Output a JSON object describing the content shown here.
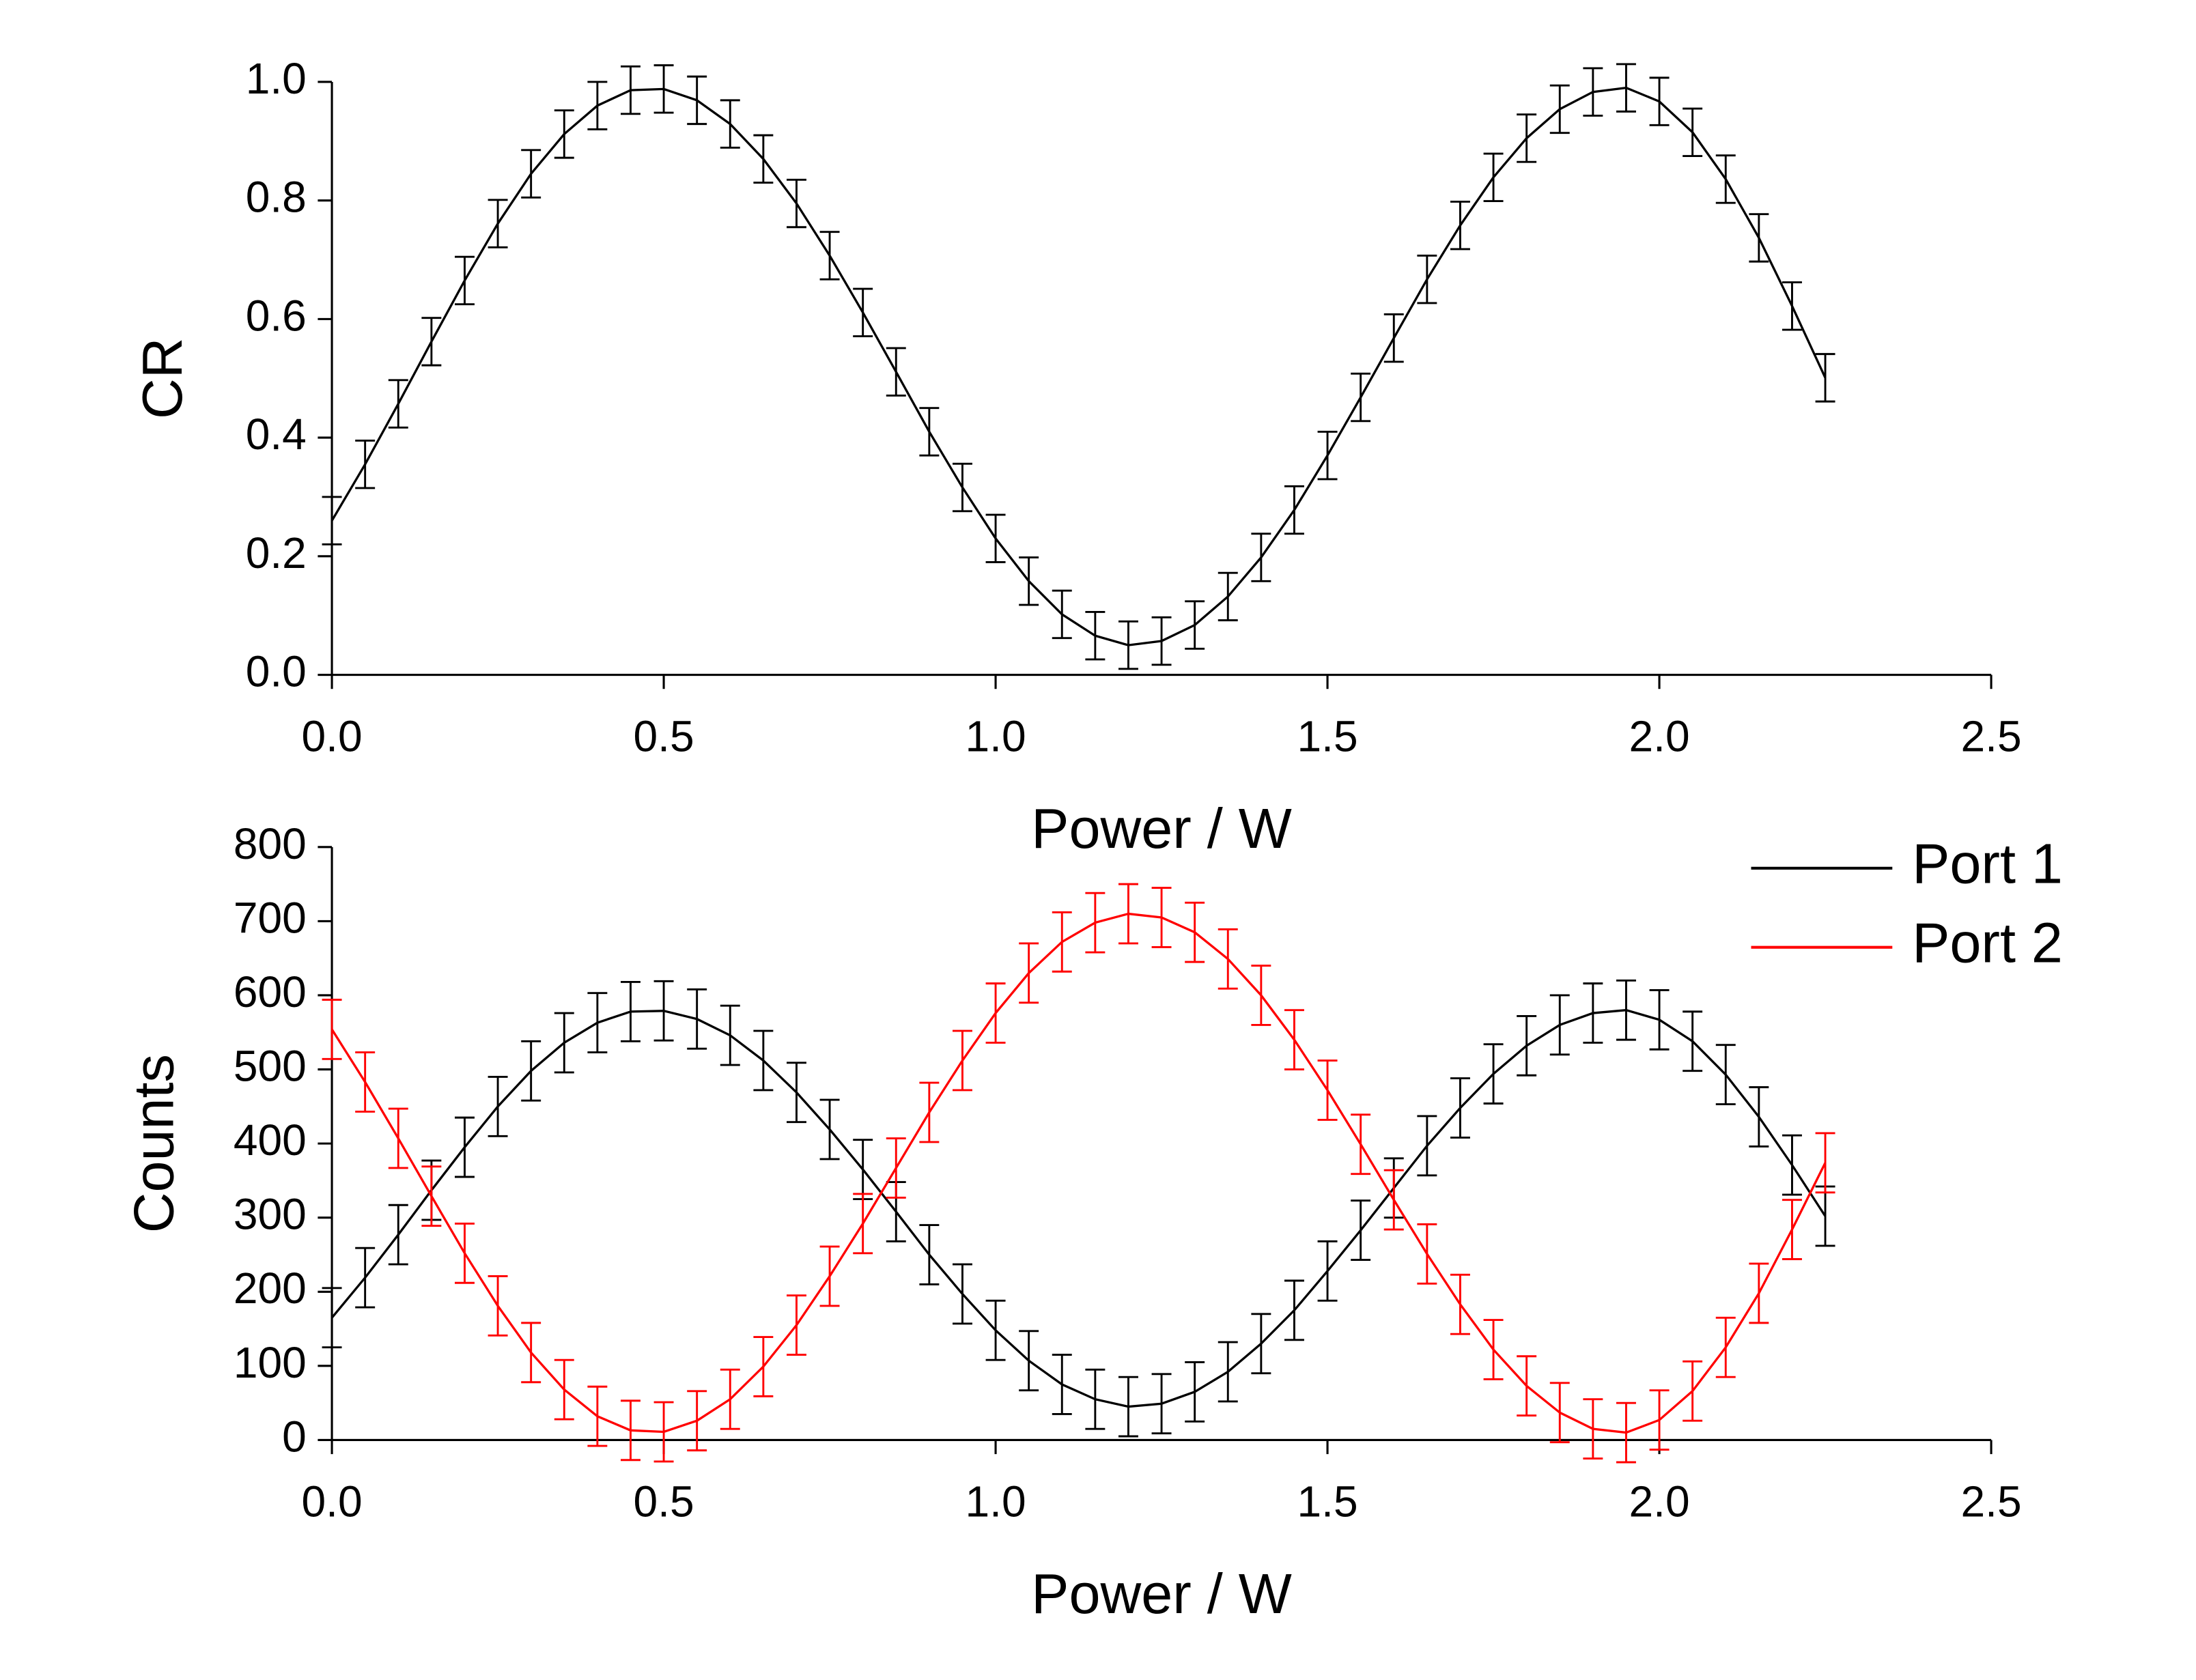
{
  "chart_data": [
    {
      "type": "line",
      "x": [
        0,
        0.05,
        0.1,
        0.15,
        0.2,
        0.25,
        0.3,
        0.35,
        0.4,
        0.45,
        0.5,
        0.55,
        0.6,
        0.65,
        0.7,
        0.75,
        0.8,
        0.85,
        0.9,
        0.95,
        1.0,
        1.05,
        1.1,
        1.15,
        1.2,
        1.25,
        1.3,
        1.35,
        1.4,
        1.45,
        1.5,
        1.55,
        1.6,
        1.65,
        1.7,
        1.75,
        1.8,
        1.85,
        1.9,
        1.95,
        2.0,
        2.05,
        2.1,
        2.15,
        2.2,
        2.25
      ],
      "series": [
        {
          "color": "#000000",
          "values": [
            0.26,
            0.355,
            0.457,
            0.562,
            0.665,
            0.761,
            0.845,
            0.912,
            0.96,
            0.986,
            0.988,
            0.969,
            0.929,
            0.87,
            0.795,
            0.707,
            0.611,
            0.511,
            0.41,
            0.316,
            0.23,
            0.158,
            0.102,
            0.066,
            0.05,
            0.057,
            0.084,
            0.132,
            0.198,
            0.278,
            0.37,
            0.468,
            0.568,
            0.667,
            0.758,
            0.839,
            0.905,
            0.954,
            0.983,
            0.99,
            0.967,
            0.915,
            0.836,
            0.737,
            0.622,
            0.501
          ],
          "errors": [
            0.04,
            0.04,
            0.04,
            0.04,
            0.04,
            0.04,
            0.04,
            0.04,
            0.04,
            0.04,
            0.04,
            0.04,
            0.04,
            0.04,
            0.04,
            0.04,
            0.04,
            0.04,
            0.04,
            0.04,
            0.04,
            0.04,
            0.04,
            0.04,
            0.04,
            0.04,
            0.04,
            0.04,
            0.04,
            0.04,
            0.04,
            0.04,
            0.04,
            0.04,
            0.04,
            0.04,
            0.04,
            0.04,
            0.04,
            0.04,
            0.04,
            0.04,
            0.04,
            0.04,
            0.04,
            0.04
          ]
        }
      ],
      "xlabel": "Power / W",
      "ylabel": "CR",
      "xlim": [
        0,
        2.5
      ],
      "ylim": [
        0,
        1.0
      ],
      "xticks": [
        {
          "value": 0,
          "label": "0.0"
        },
        {
          "value": 0.5,
          "label": "0.5"
        },
        {
          "value": 1.0,
          "label": "1.0"
        },
        {
          "value": 1.5,
          "label": "1.5"
        },
        {
          "value": 2.0,
          "label": "2.0"
        },
        {
          "value": 2.5,
          "label": "2.5"
        }
      ],
      "yticks": [
        {
          "value": 0,
          "label": "0.0"
        },
        {
          "value": 0.2,
          "label": "0.2"
        },
        {
          "value": 0.4,
          "label": "0.4"
        },
        {
          "value": 0.6,
          "label": "0.6"
        },
        {
          "value": 0.8,
          "label": "0.8"
        },
        {
          "value": 1.0,
          "label": "1.0"
        }
      ]
    },
    {
      "type": "line",
      "x": [
        0,
        0.05,
        0.1,
        0.15,
        0.2,
        0.25,
        0.3,
        0.35,
        0.4,
        0.45,
        0.5,
        0.55,
        0.6,
        0.65,
        0.7,
        0.75,
        0.8,
        0.85,
        0.9,
        0.95,
        1.0,
        1.05,
        1.1,
        1.15,
        1.2,
        1.25,
        1.3,
        1.35,
        1.4,
        1.45,
        1.5,
        1.55,
        1.6,
        1.65,
        1.7,
        1.75,
        1.8,
        1.85,
        1.9,
        1.95,
        2.0,
        2.05,
        2.1,
        2.15,
        2.2,
        2.25
      ],
      "series": [
        {
          "name": "Port 1",
          "color": "#000000",
          "values": [
            165,
            219,
            277,
            337,
            395,
            450,
            498,
            536,
            563,
            578,
            579,
            568,
            546,
            512,
            469,
            419,
            365,
            308,
            250,
            197,
            148,
            107,
            75,
            55,
            45,
            49,
            65,
            92,
            130,
            175,
            228,
            283,
            340,
            397,
            448,
            494,
            532,
            560,
            576,
            580,
            567,
            538,
            493,
            436,
            371,
            302
          ],
          "errors": [
            40,
            40,
            40,
            40,
            40,
            40,
            40,
            40,
            40,
            40,
            40,
            40,
            40,
            40,
            40,
            40,
            40,
            40,
            40,
            40,
            40,
            40,
            40,
            40,
            40,
            40,
            40,
            40,
            40,
            40,
            40,
            40,
            40,
            40,
            40,
            40,
            40,
            40,
            40,
            40,
            40,
            40,
            40,
            40,
            40,
            40
          ]
        },
        {
          "name": "Port 2",
          "color": "#ff0000",
          "values": [
            554,
            483,
            407,
            329,
            252,
            181,
            118,
            68,
            32,
            13,
            11,
            26,
            55,
            99,
            155,
            221,
            292,
            367,
            442,
            512,
            576,
            630,
            672,
            698,
            710,
            705,
            685,
            649,
            600,
            540,
            472,
            399,
            324,
            251,
            183,
            122,
            73,
            37,
            15,
            10,
            27,
            66,
            125,
            198,
            284,
            374
          ],
          "errors": [
            40,
            40,
            40,
            40,
            40,
            40,
            40,
            40,
            40,
            40,
            40,
            40,
            40,
            40,
            40,
            40,
            40,
            40,
            40,
            40,
            40,
            40,
            40,
            40,
            40,
            40,
            40,
            40,
            40,
            40,
            40,
            40,
            40,
            40,
            40,
            40,
            40,
            40,
            40,
            40,
            40,
            40,
            40,
            40,
            40,
            40
          ]
        }
      ],
      "xlabel": "Power / W",
      "ylabel": "Counts",
      "xlim": [
        0,
        2.5
      ],
      "ylim": [
        0,
        800
      ],
      "xticks": [
        {
          "value": 0,
          "label": "0.0"
        },
        {
          "value": 0.5,
          "label": "0.5"
        },
        {
          "value": 1.0,
          "label": "1.0"
        },
        {
          "value": 1.5,
          "label": "1.5"
        },
        {
          "value": 2.0,
          "label": "2.0"
        },
        {
          "value": 2.5,
          "label": "2.5"
        }
      ],
      "yticks": [
        0,
        100,
        200,
        300,
        400,
        500,
        600,
        700,
        800
      ],
      "legend": "upper right"
    }
  ]
}
